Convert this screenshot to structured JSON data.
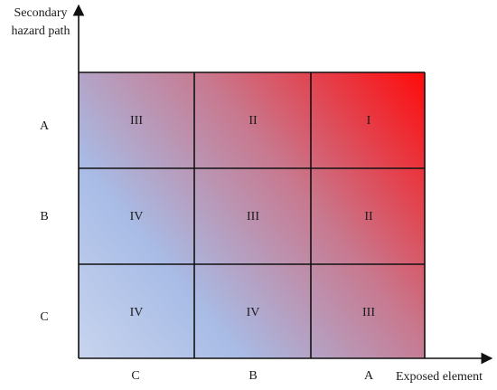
{
  "axes": {
    "y_title": [
      "Secondary",
      "hazard path"
    ],
    "x_title": "Exposed element",
    "y_levels": [
      "A",
      "B",
      "C"
    ],
    "x_levels": [
      "C",
      "B",
      "A"
    ]
  },
  "grid": {
    "rows": [
      [
        "III",
        "II",
        "I"
      ],
      [
        "IV",
        "III",
        "II"
      ],
      [
        "IV",
        "IV",
        "III"
      ]
    ]
  },
  "colors": {
    "high": "#ff0a0a",
    "mid": "#c8788e",
    "low": "#a8bce6",
    "lowest": "#c8d4ee",
    "lines": "#111111"
  }
}
